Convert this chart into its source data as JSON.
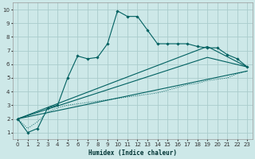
{
  "xlabel": "Humidex (Indice chaleur)",
  "bg_color": "#cde8e8",
  "grid_color": "#aacccc",
  "line_color": "#006060",
  "xlim": [
    -0.5,
    23.5
  ],
  "ylim": [
    0.5,
    10.5
  ],
  "xticks": [
    0,
    1,
    2,
    3,
    4,
    5,
    6,
    7,
    8,
    9,
    10,
    11,
    12,
    13,
    14,
    15,
    16,
    17,
    18,
    19,
    20,
    21,
    22,
    23
  ],
  "yticks": [
    1,
    2,
    3,
    4,
    5,
    6,
    7,
    8,
    9,
    10
  ],
  "line1_x": [
    0,
    1,
    2,
    3,
    4,
    5,
    6,
    7,
    8,
    9,
    10,
    11,
    12,
    13,
    14,
    15,
    16,
    17,
    18,
    19,
    20,
    21,
    22,
    23
  ],
  "line1_y": [
    2,
    1,
    1.3,
    2.8,
    3.0,
    5.0,
    6.6,
    6.4,
    6.5,
    7.5,
    9.9,
    9.5,
    9.5,
    8.5,
    7.5,
    7.5,
    7.5,
    7.5,
    7.3,
    7.2,
    7.2,
    6.7,
    6.4,
    5.8
  ],
  "line2_x": [
    0,
    1,
    2,
    3,
    4,
    5,
    6,
    7,
    8,
    9,
    10,
    11,
    12,
    13,
    14,
    15,
    16,
    17,
    18,
    19,
    20,
    21,
    22,
    23
  ],
  "line2_y": [
    2.0,
    1.3,
    1.8,
    2.5,
    2.8,
    3.0,
    3.1,
    3.2,
    3.3,
    3.4,
    3.5,
    3.6,
    3.7,
    3.8,
    3.9,
    4.1,
    4.3,
    4.5,
    4.6,
    4.8,
    4.9,
    5.0,
    5.3,
    5.5
  ],
  "line3_x": [
    0,
    19,
    23
  ],
  "line3_y": [
    2.0,
    7.3,
    5.8
  ],
  "line4_x": [
    0,
    19,
    23
  ],
  "line4_y": [
    2.0,
    6.5,
    5.8
  ],
  "line5_x": [
    0,
    23
  ],
  "line5_y": [
    2.0,
    5.5
  ]
}
